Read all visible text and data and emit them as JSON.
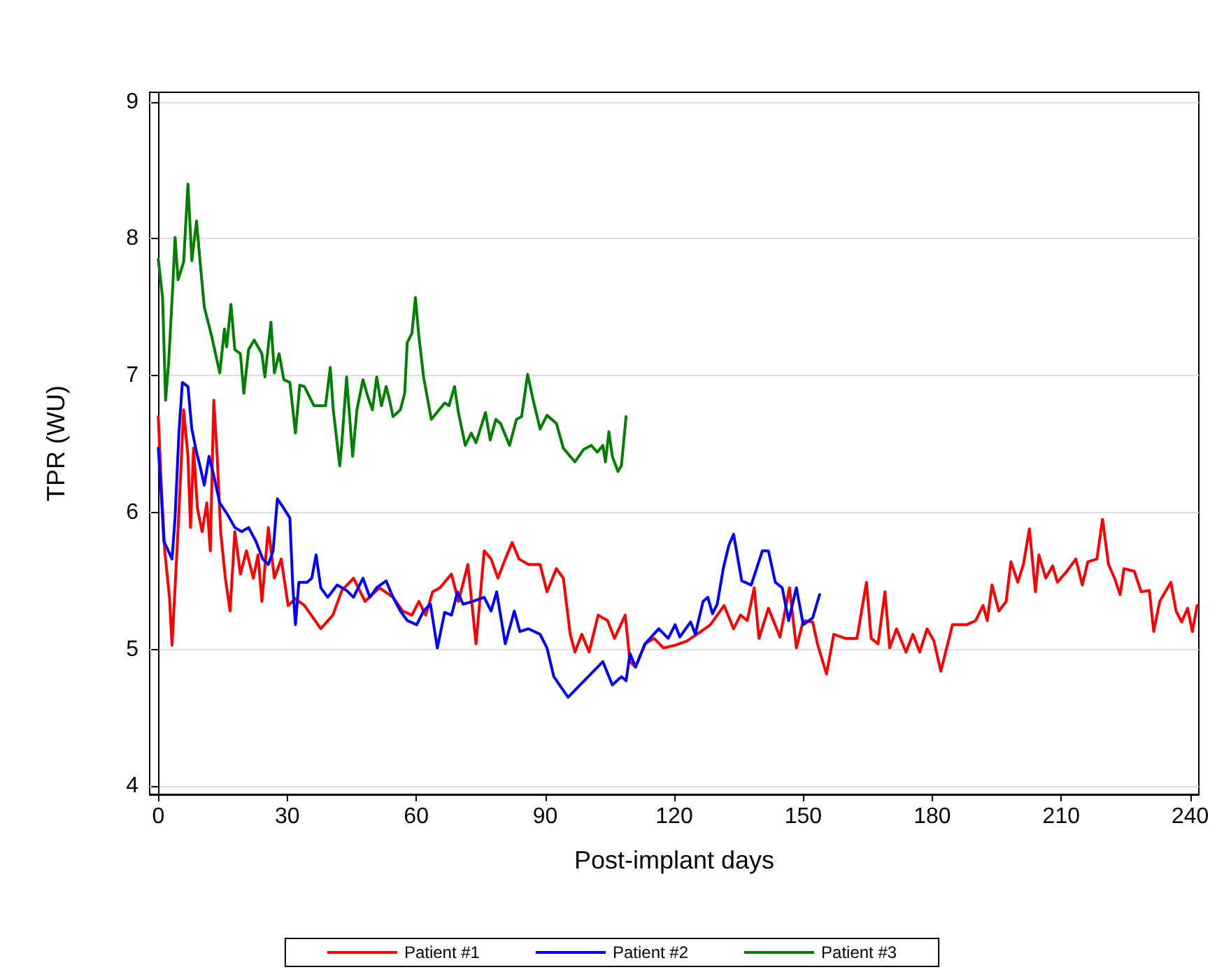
{
  "chart_data": {
    "type": "line",
    "xlabel": "Post-implant days",
    "ylabel": "TPR (WU)",
    "xlim": [
      -2,
      242
    ],
    "ylim": [
      3.94,
      9.07
    ],
    "xticks": [
      0,
      30,
      60,
      90,
      120,
      150,
      180,
      210,
      240
    ],
    "yticks": [
      4,
      5,
      6,
      7,
      8,
      9
    ],
    "grid": "y",
    "legend": "bottom",
    "marker": "none",
    "line_style": "solid",
    "series": [
      {
        "name": "Patient #1",
        "color": "#ff0000",
        "x": [
          0,
          0.7,
          1.5,
          2.6,
          3.2,
          3.9,
          4.8,
          5.9,
          6.9,
          7.5,
          8.2,
          9.1,
          10.2,
          11.3,
          12.1,
          12.9,
          13.7,
          14.5,
          15.6,
          16.7,
          17.8,
          19.1,
          20.5,
          22.1,
          23.2,
          24.1,
          25.6,
          27.0,
          28.6,
          30.2,
          31.9,
          34.0,
          37.8,
          40.6,
          42.7,
          45.4,
          48.1,
          51.4,
          54.6,
          56.8,
          59.0,
          60.6,
          62.2,
          63.8,
          65.5,
          68.2,
          69.8,
          72.0,
          73.9,
          75.8,
          77.4,
          79.0,
          80.7,
          82.3,
          83.9,
          86.1,
          88.8,
          90.4,
          92.6,
          94.2,
          95.8,
          96.9,
          98.5,
          100.2,
          102.3,
          104.5,
          106.1,
          108.6,
          109.7,
          111.0,
          113.2,
          115.3,
          117.5,
          120.2,
          122.9,
          126.2,
          128.4,
          131.6,
          133.8,
          135.4,
          137.0,
          138.6,
          139.7,
          141.9,
          144.6,
          146.8,
          148.4,
          150.0,
          152.2,
          153.3,
          155.4,
          157.1,
          159.8,
          162.5,
          164.7,
          165.8,
          167.4,
          169.0,
          170.1,
          171.7,
          173.9,
          175.5,
          177.1,
          178.8,
          180.4,
          182.0,
          183.6,
          184.7,
          188.0,
          190.1,
          191.8,
          192.8,
          193.9,
          195.5,
          197.2,
          198.3,
          199.9,
          201.2,
          202.6,
          204.0,
          204.8,
          206.4,
          208.0,
          209.1,
          211.3,
          213.4,
          214.9,
          216.2,
          218.3,
          219.6,
          221.0,
          222.4,
          223.7,
          224.6,
          227.0,
          228.6,
          230.5,
          231.5,
          232.9,
          235.5,
          236.7,
          238.0,
          239.4,
          240.5,
          241.6
        ],
        "values": [
          6.7,
          6.2,
          5.72,
          5.38,
          5.03,
          5.45,
          6.0,
          6.75,
          6.41,
          5.89,
          6.47,
          6.03,
          5.86,
          6.07,
          5.72,
          6.82,
          6.41,
          5.86,
          5.52,
          5.28,
          5.86,
          5.55,
          5.72,
          5.52,
          5.69,
          5.35,
          5.89,
          5.52,
          5.66,
          5.32,
          5.37,
          5.32,
          5.15,
          5.25,
          5.43,
          5.52,
          5.35,
          5.45,
          5.38,
          5.28,
          5.25,
          5.35,
          5.25,
          5.42,
          5.45,
          5.55,
          5.35,
          5.62,
          5.04,
          5.72,
          5.66,
          5.52,
          5.66,
          5.78,
          5.66,
          5.62,
          5.62,
          5.42,
          5.59,
          5.52,
          5.11,
          4.98,
          5.11,
          4.98,
          5.25,
          5.21,
          5.08,
          5.25,
          4.91,
          4.87,
          5.04,
          5.08,
          5.01,
          5.03,
          5.06,
          5.13,
          5.18,
          5.32,
          5.15,
          5.25,
          5.21,
          5.45,
          5.08,
          5.3,
          5.09,
          5.45,
          5.01,
          5.21,
          5.2,
          5.04,
          4.82,
          5.11,
          5.08,
          5.08,
          5.49,
          5.08,
          5.04,
          5.42,
          5.01,
          5.15,
          4.98,
          5.11,
          4.98,
          5.15,
          5.06,
          4.84,
          5.04,
          5.18,
          5.18,
          5.21,
          5.32,
          5.21,
          5.47,
          5.28,
          5.35,
          5.64,
          5.49,
          5.62,
          5.88,
          5.42,
          5.69,
          5.52,
          5.61,
          5.49,
          5.57,
          5.66,
          5.47,
          5.64,
          5.66,
          5.95,
          5.62,
          5.52,
          5.4,
          5.59,
          5.57,
          5.42,
          5.43,
          5.13,
          5.35,
          5.49,
          5.28,
          5.2,
          5.3,
          5.13,
          5.32
        ]
      },
      {
        "name": "Patient #2",
        "color": "#0000ff",
        "x": [
          0,
          0.7,
          1.3,
          3.2,
          3.9,
          4.8,
          5.6,
          6.9,
          7.8,
          8.9,
          9.7,
          10.7,
          11.8,
          12.9,
          14.3,
          16.2,
          17.8,
          19.4,
          21.0,
          22.7,
          24.3,
          25.6,
          26.7,
          27.7,
          29.2,
          30.6,
          31.3,
          31.9,
          32.7,
          34.6,
          35.7,
          36.7,
          37.8,
          39.4,
          41.6,
          43.8,
          45.4,
          47.6,
          49.2,
          50.8,
          53.0,
          54.6,
          56.3,
          57.9,
          60.1,
          61.7,
          63.3,
          64.9,
          66.6,
          68.2,
          69.6,
          70.9,
          73.1,
          75.8,
          77.4,
          78.7,
          80.7,
          82.8,
          84.1,
          86.1,
          88.8,
          90.4,
          92.0,
          95.3,
          103.4,
          105.6,
          107.7,
          108.8,
          109.7,
          111.0,
          113.2,
          116.4,
          118.6,
          120.2,
          121.3,
          123.8,
          124.9,
          126.7,
          127.8,
          128.9,
          130.0,
          131.4,
          132.7,
          133.8,
          135.7,
          137.9,
          140.5,
          141.9,
          143.5,
          145.1,
          146.6,
          148.4,
          150.0,
          152.2,
          153.8
        ],
        "values": [
          6.47,
          6.13,
          5.79,
          5.66,
          5.96,
          6.58,
          6.95,
          6.92,
          6.61,
          6.44,
          6.34,
          6.2,
          6.41,
          6.27,
          6.07,
          5.98,
          5.89,
          5.86,
          5.89,
          5.79,
          5.66,
          5.62,
          5.72,
          6.1,
          6.03,
          5.96,
          5.45,
          5.18,
          5.49,
          5.49,
          5.52,
          5.69,
          5.45,
          5.38,
          5.47,
          5.43,
          5.38,
          5.52,
          5.38,
          5.45,
          5.5,
          5.38,
          5.28,
          5.21,
          5.18,
          5.28,
          5.33,
          5.01,
          5.27,
          5.25,
          5.42,
          5.33,
          5.35,
          5.38,
          5.28,
          5.42,
          5.04,
          5.28,
          5.13,
          5.15,
          5.11,
          5.01,
          4.8,
          4.65,
          4.91,
          4.74,
          4.8,
          4.77,
          4.97,
          4.87,
          5.04,
          5.15,
          5.08,
          5.18,
          5.09,
          5.2,
          5.11,
          5.35,
          5.38,
          5.26,
          5.33,
          5.59,
          5.76,
          5.84,
          5.5,
          5.47,
          5.72,
          5.72,
          5.49,
          5.45,
          5.21,
          5.45,
          5.18,
          5.23,
          5.4
        ]
      },
      {
        "name": "Patient #3",
        "color": "#008000",
        "x": [
          0,
          1.0,
          1.7,
          2.4,
          3.4,
          3.9,
          4.6,
          5.9,
          6.9,
          7.8,
          8.9,
          9.7,
          10.7,
          12.4,
          14.3,
          15.4,
          15.9,
          16.9,
          17.8,
          19.1,
          19.9,
          21.0,
          22.3,
          24.1,
          24.8,
          26.2,
          27.0,
          28.1,
          29.2,
          30.6,
          31.9,
          32.9,
          34.0,
          36.2,
          38.9,
          40.0,
          40.7,
          42.2,
          42.7,
          43.8,
          45.2,
          46.2,
          47.6,
          48.7,
          49.8,
          50.8,
          51.9,
          53.0,
          53.8,
          54.6,
          56.3,
          57.3,
          57.9,
          59.0,
          59.8,
          60.6,
          61.7,
          63.5,
          66.6,
          67.6,
          68.9,
          69.8,
          71.4,
          72.8,
          73.9,
          76.1,
          77.2,
          78.5,
          79.6,
          81.7,
          83.3,
          84.5,
          85.9,
          87.2,
          88.8,
          90.4,
          92.6,
          94.2,
          96.9,
          98.9,
          100.7,
          102.1,
          103.4,
          104.0,
          104.8,
          105.6,
          106.9,
          107.7,
          108.8
        ],
        "values": [
          7.85,
          7.57,
          6.82,
          7.09,
          7.67,
          8.01,
          7.7,
          7.83,
          8.4,
          7.84,
          8.13,
          7.84,
          7.5,
          7.29,
          7.02,
          7.34,
          7.21,
          7.52,
          7.19,
          7.16,
          6.87,
          7.19,
          7.26,
          7.16,
          6.99,
          7.39,
          7.02,
          7.16,
          6.97,
          6.95,
          6.58,
          6.93,
          6.92,
          6.78,
          6.78,
          7.06,
          6.75,
          6.34,
          6.51,
          6.99,
          6.41,
          6.75,
          6.97,
          6.85,
          6.75,
          6.99,
          6.78,
          6.92,
          6.82,
          6.7,
          6.75,
          6.87,
          7.24,
          7.31,
          7.57,
          7.29,
          6.99,
          6.68,
          6.8,
          6.78,
          6.92,
          6.73,
          6.49,
          6.58,
          6.51,
          6.73,
          6.53,
          6.68,
          6.65,
          6.49,
          6.68,
          6.7,
          7.01,
          6.82,
          6.61,
          6.71,
          6.65,
          6.47,
          6.37,
          6.46,
          6.49,
          6.44,
          6.49,
          6.37,
          6.59,
          6.41,
          6.3,
          6.34,
          6.7
        ]
      }
    ]
  }
}
